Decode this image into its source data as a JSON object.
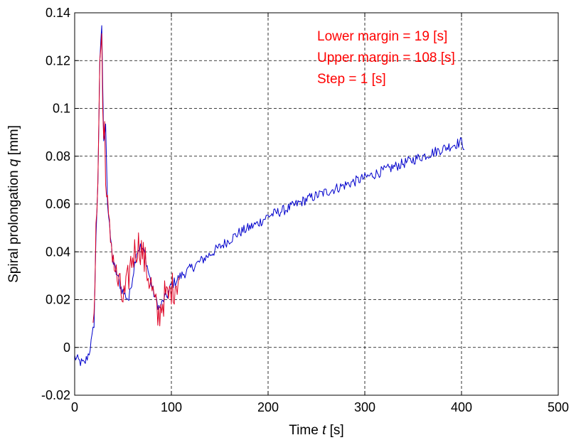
{
  "chart_data": {
    "type": "line",
    "xlabel_prefix": "Time ",
    "xlabel_var": "t",
    "xlabel_unit": " [s]",
    "ylabel_prefix": "Spiral prolongation ",
    "ylabel_var": "q",
    "ylabel_unit": " [mm]",
    "xlim": [
      0,
      500
    ],
    "ylim": [
      -0.02,
      0.14
    ],
    "xticks": [
      0,
      100,
      200,
      300,
      400,
      500
    ],
    "yticks": [
      -0.02,
      0,
      0.02,
      0.04,
      0.06,
      0.08,
      0.1,
      0.12,
      0.14
    ],
    "xtick_labels": [
      "0",
      "100",
      "200",
      "300",
      "400",
      "500"
    ],
    "ytick_labels": [
      "-0.02",
      "0",
      "0.02",
      "0.04",
      "0.06",
      "0.08",
      "0.1",
      "0.12",
      "0.14"
    ],
    "grid": true,
    "annotations": [
      {
        "text": "Lower margin = 19 [s]",
        "color": "#ff0000"
      },
      {
        "text": "Upper margin = 108 [s]",
        "color": "#ff0000"
      },
      {
        "text": "Step = 1 [s]",
        "color": "#ff0000"
      }
    ],
    "series": [
      {
        "color": "#0000cc",
        "style": "noisy",
        "x": [
          0,
          5,
          10,
          15,
          18,
          20,
          22,
          24,
          26,
          28,
          30,
          32,
          34,
          36,
          38,
          40,
          44,
          48,
          52,
          56,
          60,
          64,
          68,
          72,
          76,
          80,
          84,
          88,
          92,
          96,
          100,
          110,
          120,
          130,
          140,
          150,
          160,
          170,
          180,
          190,
          200,
          220,
          240,
          260,
          280,
          300,
          320,
          340,
          360,
          380,
          400,
          403
        ],
        "y": [
          -0.004,
          -0.006,
          -0.007,
          -0.002,
          0.004,
          0.01,
          0.045,
          0.07,
          0.118,
          0.135,
          0.085,
          0.095,
          0.06,
          0.05,
          0.042,
          0.035,
          0.03,
          0.025,
          0.022,
          0.02,
          0.03,
          0.04,
          0.042,
          0.04,
          0.032,
          0.025,
          0.02,
          0.016,
          0.02,
          0.022,
          0.026,
          0.03,
          0.033,
          0.036,
          0.039,
          0.042,
          0.045,
          0.048,
          0.05,
          0.052,
          0.055,
          0.058,
          0.062,
          0.065,
          0.068,
          0.071,
          0.074,
          0.077,
          0.08,
          0.083,
          0.086,
          0.084
        ],
        "noise": 0.0022
      },
      {
        "color": "#dd0022",
        "style": "noisy",
        "x": [
          19,
          20,
          22,
          24,
          26,
          28,
          29,
          30,
          31,
          32,
          33,
          34,
          35,
          36,
          38,
          40,
          42,
          44,
          46,
          48,
          50,
          52,
          54,
          56,
          58,
          60,
          62,
          64,
          66,
          68,
          70,
          72,
          74,
          76,
          78,
          80,
          82,
          84,
          86,
          88,
          90,
          92,
          94,
          96,
          98,
          100,
          102,
          104,
          106,
          108
        ],
        "y": [
          0.004,
          0.01,
          0.045,
          0.075,
          0.118,
          0.132,
          0.1,
          0.085,
          0.094,
          0.075,
          0.062,
          0.058,
          0.052,
          0.048,
          0.044,
          0.038,
          0.032,
          0.028,
          0.026,
          0.022,
          0.02,
          0.022,
          0.025,
          0.03,
          0.035,
          0.038,
          0.04,
          0.042,
          0.043,
          0.042,
          0.04,
          0.036,
          0.034,
          0.03,
          0.028,
          0.024,
          0.02,
          0.016,
          0.012,
          0.015,
          0.018,
          0.02,
          0.022,
          0.02,
          0.022,
          0.025,
          0.024,
          0.027,
          0.028,
          0.03
        ],
        "noise": 0.0075
      }
    ]
  }
}
